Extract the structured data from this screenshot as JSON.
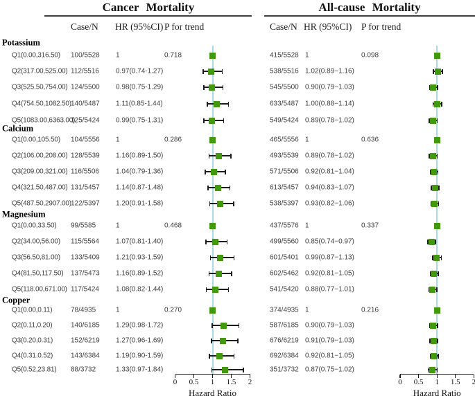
{
  "chart_data": {
    "type": "scatter",
    "variant": "forest-plot",
    "axis": {
      "ticks": [
        0,
        0.5,
        1,
        1.5,
        2
      ],
      "xlim": [
        0,
        2
      ],
      "label": "Hazard Ratio",
      "reference_line": 1
    },
    "colors": {
      "marker": "#43990d",
      "reference_line": "#a8dbe8",
      "ci": "#1c1c1c"
    },
    "panels": [
      {
        "title": "Cancer Mortality",
        "columns": [
          "Case/N",
          "HR (95%CI)",
          "P for trend"
        ]
      },
      {
        "title": "All-cause Mortality",
        "columns": [
          "Case/N",
          "HR (95%CI)",
          "P for trend"
        ]
      }
    ],
    "groups": [
      {
        "name": "Potassium",
        "rows": [
          {
            "label": "Q1(0.00,316.50)",
            "cancer": {
              "case_n": "100/5528",
              "hr_text": "1",
              "hr": 1,
              "p": "0.718"
            },
            "allcause": {
              "case_n": "415/5528",
              "hr_text": "1",
              "hr": 1,
              "p": "0.098"
            }
          },
          {
            "label": "Q2(317.00,525.00)",
            "cancer": {
              "case_n": "112/5516",
              "hr_text": "0.97(0.74-1.27)",
              "hr": 0.97,
              "lo": 0.74,
              "hi": 1.27
            },
            "allcause": {
              "case_n": "538/5516",
              "hr_text": "1.02(0.89−1.16)",
              "hr": 1.02,
              "lo": 0.89,
              "hi": 1.16
            }
          },
          {
            "label": "Q3(525.50,754.00)",
            "cancer": {
              "case_n": "124/5500",
              "hr_text": "0.98(0.75-1.29)",
              "hr": 0.98,
              "lo": 0.75,
              "hi": 1.29
            },
            "allcause": {
              "case_n": "545/5500",
              "hr_text": "0.90(0.79−1.03)",
              "hr": 0.9,
              "lo": 0.79,
              "hi": 1.03
            }
          },
          {
            "label": "Q4(754.50,1082.50)",
            "cancer": {
              "case_n": "140/5487",
              "hr_text": "1.11(0.85-1.44)",
              "hr": 1.11,
              "lo": 0.85,
              "hi": 1.44
            },
            "allcause": {
              "case_n": "633/5487",
              "hr_text": "1.00(0.88−1.14)",
              "hr": 1.0,
              "lo": 0.88,
              "hi": 1.14
            }
          },
          {
            "label": "Q5(1083.00,6363.00)",
            "cancer": {
              "case_n": "125/5424",
              "hr_text": "0.99(0.75-1.31)",
              "hr": 0.99,
              "lo": 0.75,
              "hi": 1.31
            },
            "allcause": {
              "case_n": "549/5424",
              "hr_text": "0.89(0.78−1.02)",
              "hr": 0.89,
              "lo": 0.78,
              "hi": 1.02
            }
          }
        ]
      },
      {
        "name": "Calcium",
        "rows": [
          {
            "label": "Q1(0.00,105.50)",
            "cancer": {
              "case_n": "104/5556",
              "hr_text": "1",
              "hr": 1,
              "p": "0.286"
            },
            "allcause": {
              "case_n": "465/5556",
              "hr_text": "1",
              "hr": 1,
              "p": "0.636"
            }
          },
          {
            "label": "Q2(106.00,208.00)",
            "cancer": {
              "case_n": "128/5539",
              "hr_text": "1.16(0.89-1.50)",
              "hr": 1.16,
              "lo": 0.89,
              "hi": 1.5
            },
            "allcause": {
              "case_n": "493/5539",
              "hr_text": "0.89(0.78−1.02)",
              "hr": 0.89,
              "lo": 0.78,
              "hi": 1.02
            }
          },
          {
            "label": "Q3(209.00,321.00)",
            "cancer": {
              "case_n": "116/5506",
              "hr_text": "1.04(0.79-1.36)",
              "hr": 1.04,
              "lo": 0.79,
              "hi": 1.36
            },
            "allcause": {
              "case_n": "571/5506",
              "hr_text": "0.92(0.81−1.04)",
              "hr": 0.92,
              "lo": 0.81,
              "hi": 1.04
            }
          },
          {
            "label": "Q4(321.50,487.00)",
            "cancer": {
              "case_n": "131/5457",
              "hr_text": "1.14(0.87-1.48)",
              "hr": 1.14,
              "lo": 0.87,
              "hi": 1.48
            },
            "allcause": {
              "case_n": "613/5457",
              "hr_text": "0.94(0.83−1.07)",
              "hr": 0.94,
              "lo": 0.83,
              "hi": 1.07
            }
          },
          {
            "label": "Q5(487.50,2907.00)",
            "cancer": {
              "case_n": "122/5397",
              "hr_text": "1.20(0.91-1.58)",
              "hr": 1.2,
              "lo": 0.91,
              "hi": 1.58
            },
            "allcause": {
              "case_n": "538/5397",
              "hr_text": "0.93(0.82−1.06)",
              "hr": 0.93,
              "lo": 0.82,
              "hi": 1.06
            }
          }
        ]
      },
      {
        "name": "Magnesium",
        "rows": [
          {
            "label": "Q1(0.00,33.50)",
            "cancer": {
              "case_n": "99/5585",
              "hr_text": "1",
              "hr": 1,
              "p": "0.468"
            },
            "allcause": {
              "case_n": "437/5576",
              "hr_text": "1",
              "hr": 1,
              "p": "0.337"
            }
          },
          {
            "label": "Q2(34.00,56.00)",
            "cancer": {
              "case_n": "115/5564",
              "hr_text": "1.07(0.81-1.40)",
              "hr": 1.07,
              "lo": 0.81,
              "hi": 1.4
            },
            "allcause": {
              "case_n": "499/5560",
              "hr_text": "0.85(0.74−0.97)",
              "hr": 0.85,
              "lo": 0.74,
              "hi": 0.97
            }
          },
          {
            "label": "Q3(56.50,81.00)",
            "cancer": {
              "case_n": "133/5409",
              "hr_text": "1.21(0.93-1.59)",
              "hr": 1.21,
              "lo": 0.93,
              "hi": 1.59
            },
            "allcause": {
              "case_n": "601/5401",
              "hr_text": "0.99(0.87−1.13)",
              "hr": 0.99,
              "lo": 0.87,
              "hi": 1.13
            }
          },
          {
            "label": "Q4(81.50,117.50)",
            "cancer": {
              "case_n": "137/5473",
              "hr_text": "1.16(0.89-1.52)",
              "hr": 1.16,
              "lo": 0.89,
              "hi": 1.52
            },
            "allcause": {
              "case_n": "602/5462",
              "hr_text": "0.92(0.81−1.05)",
              "hr": 0.92,
              "lo": 0.81,
              "hi": 1.05
            }
          },
          {
            "label": "Q5(118.00,671.00)",
            "cancer": {
              "case_n": "117/5424",
              "hr_text": "1.08(0.82-1.44)",
              "hr": 1.08,
              "lo": 0.82,
              "hi": 1.44
            },
            "allcause": {
              "case_n": "541/5420",
              "hr_text": "0.88(0.77−1.01)",
              "hr": 0.88,
              "lo": 0.77,
              "hi": 1.01
            }
          }
        ]
      },
      {
        "name": "Copper",
        "rows": [
          {
            "label": "Q1(0.00,0.11)",
            "cancer": {
              "case_n": "78/4935",
              "hr_text": "1",
              "hr": 1,
              "p": "0.270"
            },
            "allcause": {
              "case_n": "374/4935",
              "hr_text": "1",
              "hr": 1,
              "p": "0.216"
            }
          },
          {
            "label": "Q2(0.11,0.20)",
            "cancer": {
              "case_n": "140/6185",
              "hr_text": "1.29(0.98-1.72)",
              "hr": 1.29,
              "lo": 0.98,
              "hi": 1.72
            },
            "allcause": {
              "case_n": "587/6185",
              "hr_text": "0.90(0.79−1.03)",
              "hr": 0.9,
              "lo": 0.79,
              "hi": 1.03
            }
          },
          {
            "label": "Q3(0.20,0.31)",
            "cancer": {
              "case_n": "152/6219",
              "hr_text": "1.27(0.96-1.69)",
              "hr": 1.27,
              "lo": 0.96,
              "hi": 1.69
            },
            "allcause": {
              "case_n": "676/6219",
              "hr_text": "0.91(0.79−1.03)",
              "hr": 0.91,
              "lo": 0.79,
              "hi": 1.03
            }
          },
          {
            "label": "Q4(0.31.0.52)",
            "cancer": {
              "case_n": "143/6384",
              "hr_text": "1.19(0.90-1.59)",
              "hr": 1.19,
              "lo": 0.9,
              "hi": 1.59
            },
            "allcause": {
              "case_n": "692/6384",
              "hr_text": "0.92(0.81−1.05)",
              "hr": 0.92,
              "lo": 0.81,
              "hi": 1.05
            }
          },
          {
            "label": "Q5(0.52,23.81)",
            "cancer": {
              "case_n": "88/3732",
              "hr_text": "1.33(0.97-1.84)",
              "hr": 1.33,
              "lo": 0.97,
              "hi": 1.84
            },
            "allcause": {
              "case_n": "351/3732",
              "hr_text": "0.87(0.75−1.02)",
              "hr": 0.87,
              "lo": 0.75,
              "hi": 1.02
            }
          }
        ]
      }
    ]
  }
}
